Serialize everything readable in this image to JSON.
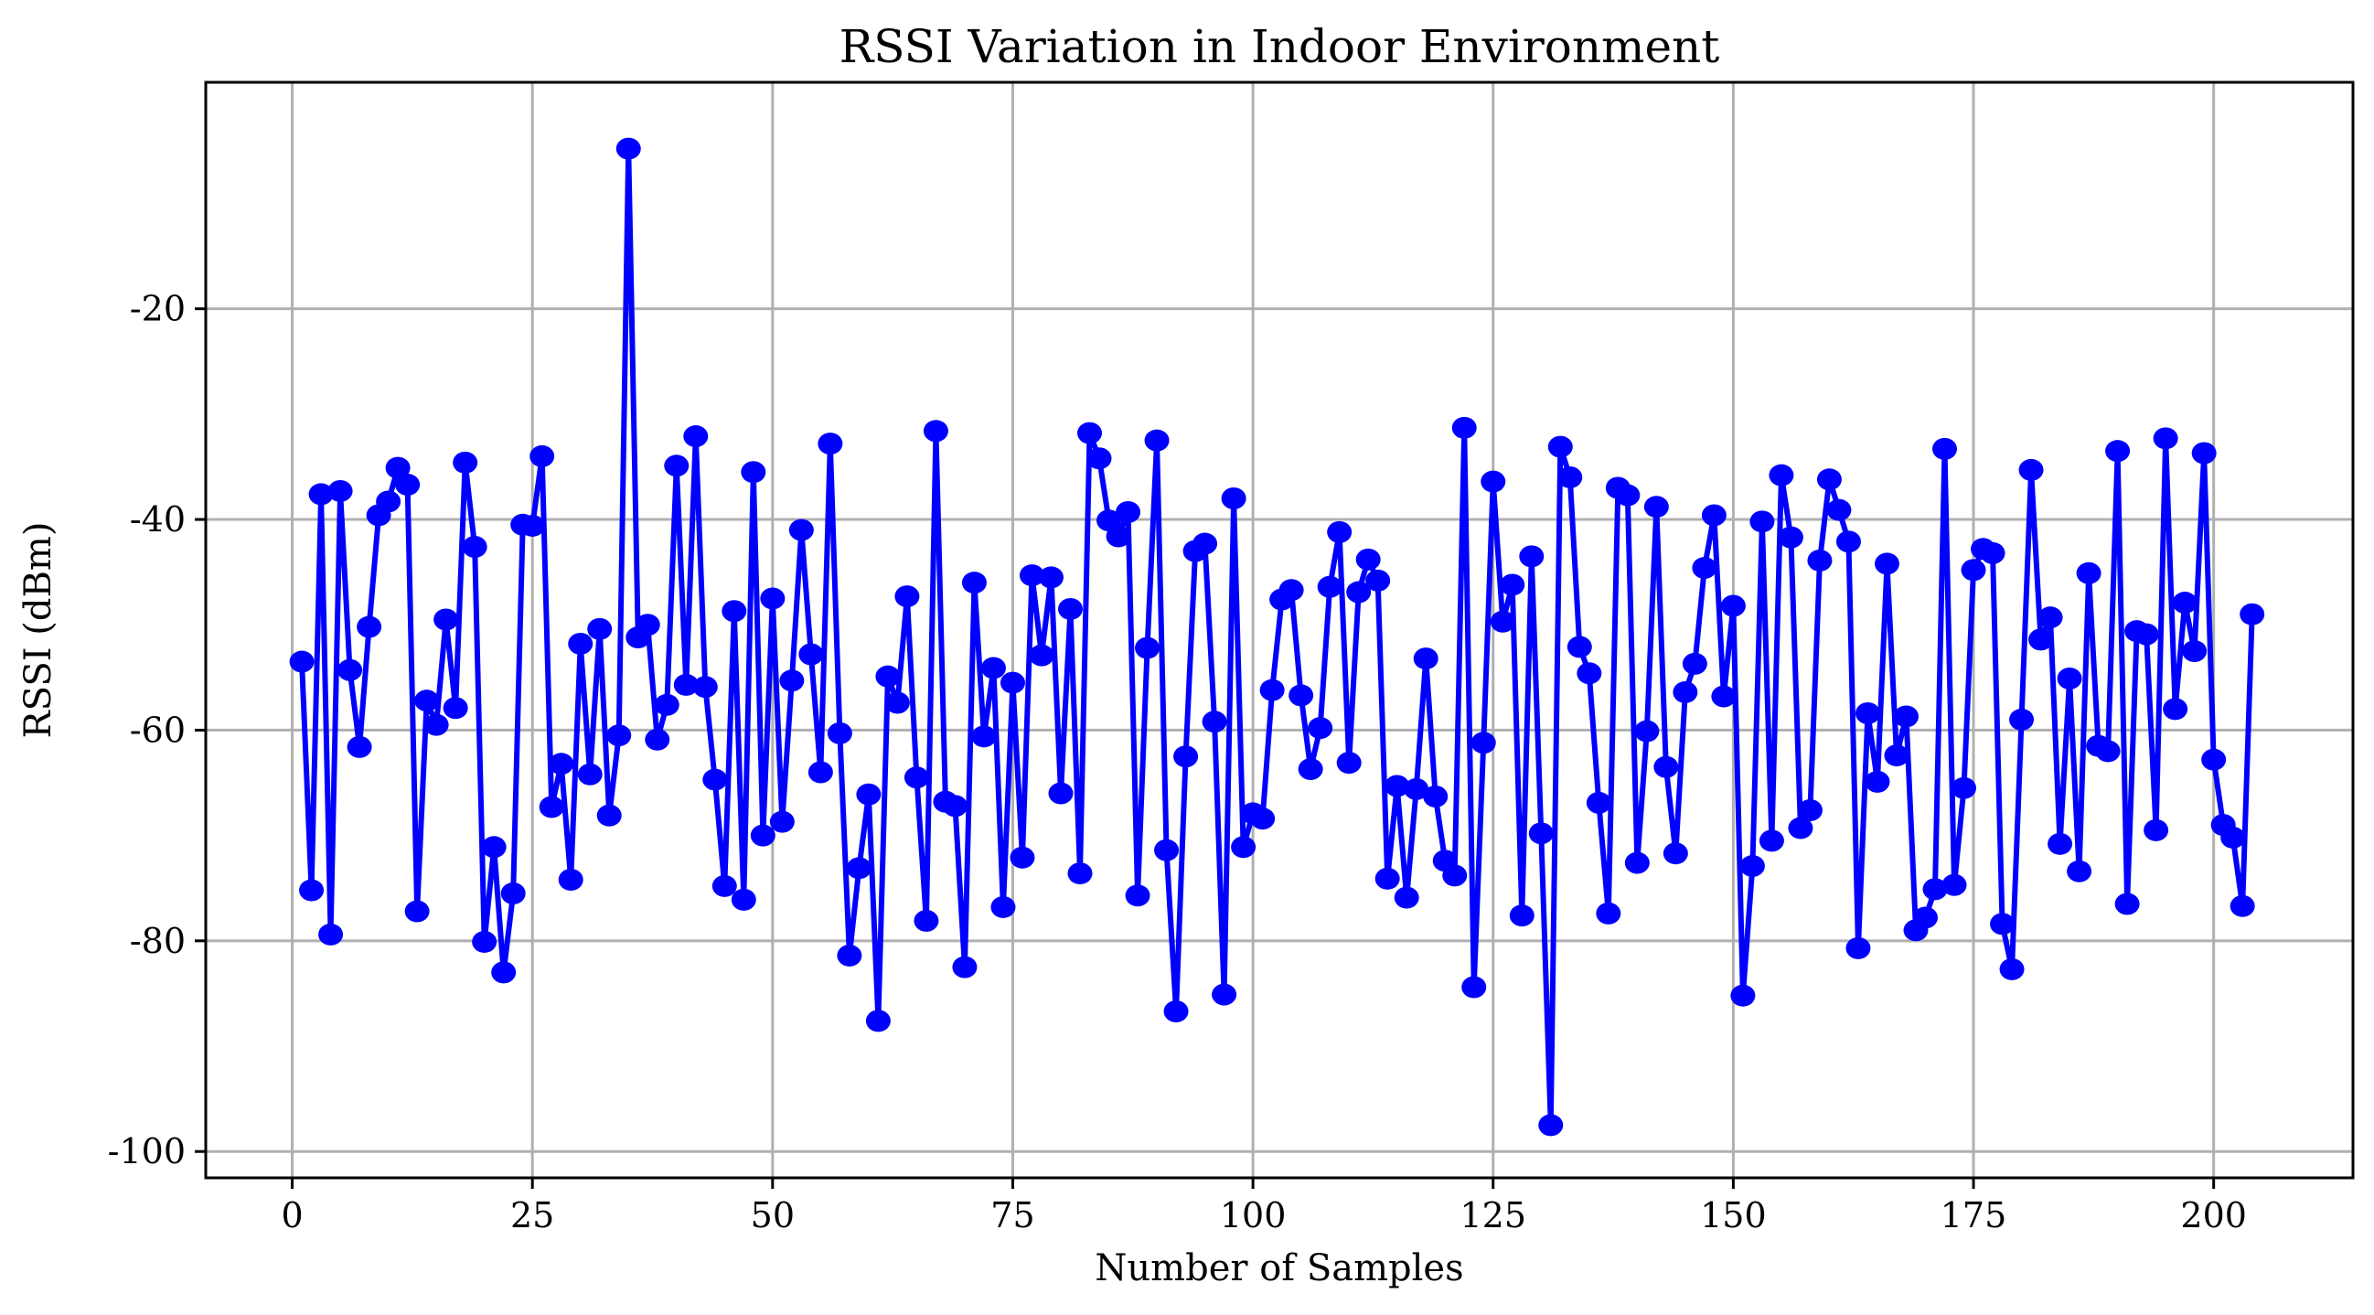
{
  "chart_data": {
    "type": "line",
    "title": "RSSI Variation in Indoor Environment",
    "xlabel": "Number of Samples",
    "ylabel": "RSSI (dBm)",
    "xlim": [
      -9,
      214.5
    ],
    "ylim": [
      -102.5,
      1.5
    ],
    "xticks": [
      0,
      25,
      50,
      75,
      100,
      125,
      150,
      175,
      200
    ],
    "yticks": [
      -100,
      -80,
      -60,
      -40,
      -20
    ],
    "grid": true,
    "line_color": "#0000ff",
    "marker": "circle",
    "series": [
      {
        "name": "RSSI",
        "x": [
          1,
          2,
          3,
          4,
          5,
          6,
          7,
          8,
          9,
          10,
          11,
          12,
          13,
          14,
          15,
          16,
          17,
          18,
          19,
          20,
          21,
          22,
          23,
          24,
          25,
          26,
          27,
          28,
          29,
          30,
          31,
          32,
          33,
          34,
          35,
          36,
          37,
          38,
          39,
          40,
          41,
          42,
          43,
          44,
          45,
          46,
          47,
          48,
          49,
          50,
          51,
          52,
          53,
          54,
          55,
          56,
          57,
          58,
          59,
          60,
          61,
          62,
          63,
          64,
          65,
          66,
          67,
          68,
          69,
          70,
          71,
          72,
          73,
          74,
          75,
          76,
          77,
          78,
          79,
          80,
          81,
          82,
          83,
          84,
          85,
          86,
          87,
          88,
          89,
          90,
          91,
          92,
          93,
          94,
          95,
          96,
          97,
          98,
          99,
          100,
          101,
          102,
          103,
          104,
          105,
          106,
          107,
          108,
          109,
          110,
          111,
          112,
          113,
          114,
          115,
          116,
          117,
          118,
          119,
          120,
          121,
          122,
          123,
          124,
          125,
          126,
          127,
          128,
          129,
          130,
          131,
          132,
          133,
          134,
          135,
          136,
          137,
          138,
          139,
          140,
          141,
          142,
          143,
          144,
          145,
          146,
          147,
          148,
          149,
          150,
          151,
          152,
          153,
          154,
          155,
          156,
          157,
          158,
          159,
          160,
          161,
          162,
          163,
          164,
          165,
          166,
          167,
          168,
          169,
          170,
          171,
          172,
          173,
          174,
          175,
          176,
          177,
          178,
          179,
          180,
          181,
          182,
          183,
          184,
          185,
          186,
          187,
          188,
          189,
          190,
          191,
          192,
          193,
          194,
          195,
          196,
          197,
          198,
          199,
          200,
          201,
          202,
          203,
          204
        ],
        "values": [
          -53.5,
          -75.2,
          -37.6,
          -79.4,
          -37.3,
          -54.3,
          -61.6,
          -50.2,
          -39.6,
          -38.3,
          -35.1,
          -36.7,
          -77.2,
          -57.2,
          -59.5,
          -49.5,
          -57.9,
          -34.6,
          -42.6,
          -80.1,
          -71.1,
          -83.0,
          -75.5,
          -40.5,
          -40.6,
          -34.0,
          -67.3,
          -63.2,
          -74.2,
          -51.8,
          -64.2,
          -50.4,
          -68.1,
          -60.5,
          -4.8,
          -51.2,
          -50.0,
          -60.9,
          -57.6,
          -34.9,
          -55.7,
          -32.1,
          -55.9,
          -64.7,
          -74.8,
          -48.7,
          -76.1,
          -35.5,
          -70.0,
          -47.5,
          -68.7,
          -55.3,
          -41.0,
          -52.8,
          -64.0,
          -32.8,
          -60.3,
          -81.4,
          -73.1,
          -66.1,
          -87.6,
          -54.9,
          -57.4,
          -47.3,
          -64.5,
          -78.1,
          -31.6,
          -66.8,
          -67.2,
          -82.5,
          -46.0,
          -60.6,
          -54.1,
          -76.8,
          -55.5,
          -72.1,
          -45.3,
          -52.9,
          -45.5,
          -66.0,
          -48.5,
          -73.6,
          -31.8,
          -34.2,
          -40.1,
          -41.6,
          -39.3,
          -75.7,
          -52.2,
          -32.5,
          -71.4,
          -86.7,
          -62.5,
          -43.0,
          -42.3,
          -59.2,
          -85.1,
          -38.0,
          -71.1,
          -67.9,
          -68.4,
          -56.2,
          -47.6,
          -46.7,
          -56.7,
          -63.7,
          -59.8,
          -46.4,
          -41.2,
          -63.1,
          -46.9,
          -43.8,
          -45.8,
          -74.1,
          -65.3,
          -75.9,
          -65.6,
          -53.2,
          -66.3,
          -72.4,
          -73.8,
          -31.3,
          -84.4,
          -61.2,
          -36.4,
          -49.7,
          -46.2,
          -77.6,
          -43.5,
          -69.8,
          -97.5,
          -33.1,
          -36.0,
          -52.1,
          -54.6,
          -66.9,
          -77.4,
          -37.0,
          -37.7,
          -72.6,
          -60.1,
          -38.8,
          -63.5,
          -71.7,
          -56.4,
          -53.7,
          -44.6,
          -39.6,
          -56.8,
          -48.2,
          -85.2,
          -72.9,
          -40.2,
          -70.5,
          -35.8,
          -41.7,
          -69.3,
          -67.6,
          -43.9,
          -36.2,
          -39.1,
          -42.1,
          -80.7,
          -58.4,
          -64.9,
          -44.2,
          -62.4,
          -58.7,
          -79.0,
          -77.8,
          -75.1,
          -33.3,
          -74.7,
          -65.5,
          -44.8,
          -42.8,
          -43.2,
          -78.4,
          -82.7,
          -59.0,
          -35.3,
          -51.4,
          -49.3,
          -70.8,
          -55.1,
          -73.4,
          -45.1,
          -61.5,
          -62.0,
          -33.5,
          -76.5,
          -50.6,
          -50.9,
          -69.5,
          -32.3,
          -58.0,
          -47.9,
          -52.5,
          -33.7,
          -62.8,
          -69.0,
          -70.2,
          -76.7,
          -49.0
        ]
      }
    ]
  }
}
